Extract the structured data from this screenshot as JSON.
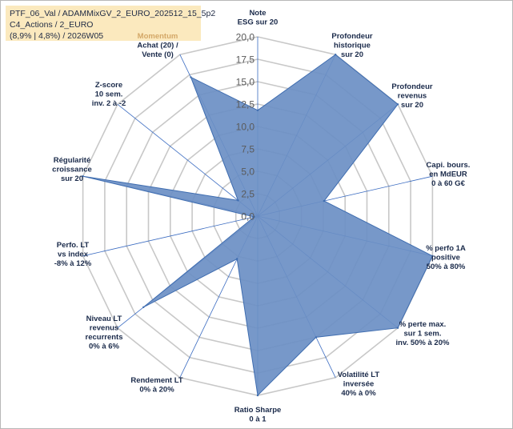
{
  "header": {
    "line1": "PTF_06_Val / ADAMMixGV_2_EURO_202512_15_5p2",
    "line2": "C4_Actions / 2_EURO",
    "line3": "(8,9% | 4,8%) / 2026W05"
  },
  "colors": {
    "fill": "#6b8fc4",
    "stroke": "#3f6db0",
    "grid": "#c8c8c8",
    "spoke": "#3a6bc1",
    "highlight_label": "#d4a868"
  },
  "chart_data": {
    "type": "radar",
    "rmin": 0,
    "rmax": 20,
    "tick_step": 2.5,
    "tick_labels": [
      "0,0",
      "2,5",
      "5,0",
      "7,5",
      "10,0",
      "12,5",
      "15,0",
      "17,5",
      "20,0"
    ],
    "grid": true,
    "axes": [
      {
        "label": "Note\nESG sur 20",
        "value": 11.8,
        "highlight": false
      },
      {
        "label": "Profondeur\nhistorique\nsur 20",
        "value": 20,
        "highlight": false
      },
      {
        "label": "Profondeur\nrevenus\nsur 20",
        "value": 20,
        "highlight": false
      },
      {
        "label": "Capi. bours.\nen MdEUR\n0 à 60 G€",
        "value": 7.6,
        "highlight": false
      },
      {
        "label": "% perfo 1A\npositive\n50% à 80%",
        "value": 20,
        "highlight": false
      },
      {
        "label": "% perte max.\nsur 1 sem.\ninv. 50% à 20%",
        "value": 20,
        "highlight": false
      },
      {
        "label": "Volatilité LT\ninversée\n40% à 0%",
        "value": 15,
        "highlight": false
      },
      {
        "label": "Ratio Sharpe\n0 à 1",
        "value": 20,
        "highlight": false
      },
      {
        "label": "Rendement LT\n0% à 20%",
        "value": 5.3,
        "highlight": false
      },
      {
        "label": "Niveau LT\nrevenus\nrecurrents\n0% à 6%",
        "value": 16.3,
        "highlight": false
      },
      {
        "label": "Perfo. LT\nvs index\n-8% à 12%",
        "value": 0.4,
        "highlight": false
      },
      {
        "label": "Régularité\ncroissance\nsur 20",
        "value": 20,
        "highlight": false
      },
      {
        "label": "Z-score\n10 sem.\ninv. 2 à -2",
        "value": 2.8,
        "highlight": false
      },
      {
        "label": "Momentum\nAchat (20) /\nVente (0)",
        "value": 17.2,
        "highlight": true
      }
    ]
  }
}
